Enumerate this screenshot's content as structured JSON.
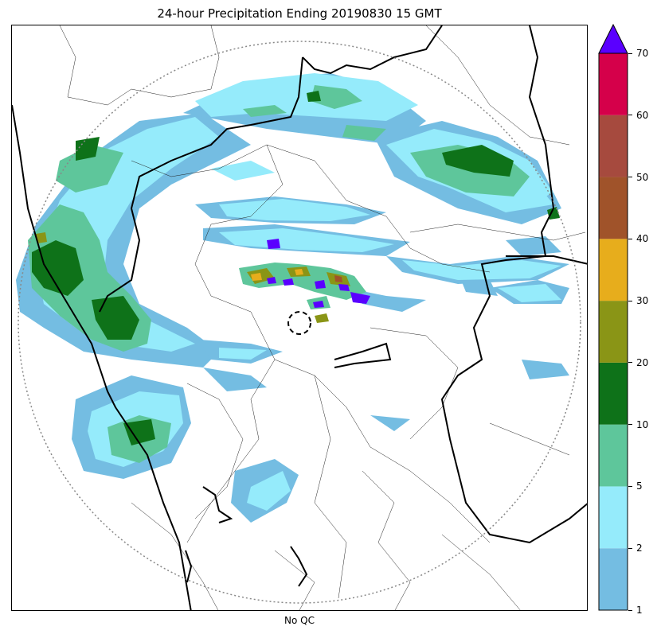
{
  "title": "24-hour Precipitation Ending 20190830 15 GMT",
  "xlabel": "No QC",
  "colorbar": {
    "levels": [
      1,
      2,
      5,
      10,
      20,
      30,
      40,
      50,
      60,
      70
    ],
    "tick_labels": [
      "1",
      "2",
      "5",
      "10",
      "20",
      "30",
      "40",
      "50",
      "60",
      "70"
    ],
    "colors": [
      "#74bde2",
      "#95ebfb",
      "#5ec69b",
      "#0e7219",
      "#8a9516",
      "#e7ad1c",
      "#a0532a",
      "#a64a3e",
      "#d5004a"
    ],
    "extend_color": "#5a00ff"
  },
  "map": {
    "range_ring_color": "#888888",
    "radar_marker": "dashed-circle",
    "boundary_color": "#000000"
  }
}
